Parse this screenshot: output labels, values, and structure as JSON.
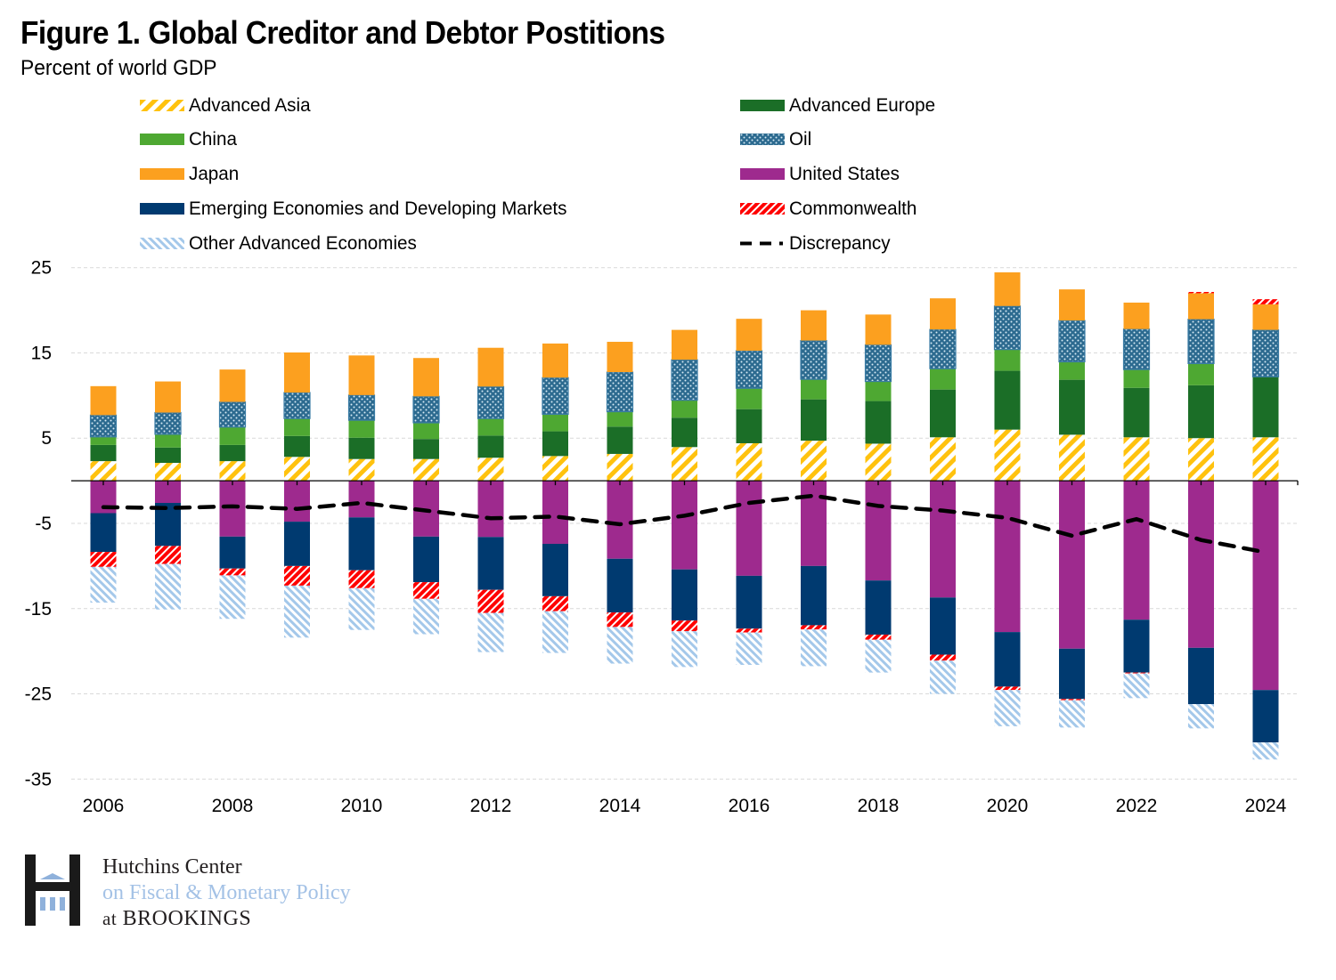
{
  "header": {
    "title": "Figure 1. Global Creditor and Debtor Postitions",
    "subtitle": "Percent of world GDP"
  },
  "legend": [
    {
      "key": "advanced_asia",
      "label": "Advanced Asia"
    },
    {
      "key": "advanced_europe",
      "label": "Advanced Europe"
    },
    {
      "key": "china",
      "label": "China"
    },
    {
      "key": "oil",
      "label": "Oil"
    },
    {
      "key": "japan",
      "label": "Japan"
    },
    {
      "key": "united_states",
      "label": "United States"
    },
    {
      "key": "emde",
      "label": "Emerging Economies and Developing Markets"
    },
    {
      "key": "commonwealth",
      "label": "Commonwealth"
    },
    {
      "key": "other_advanced",
      "label": "Other Advanced Economies"
    },
    {
      "key": "discrepancy",
      "label": "Discrepancy"
    }
  ],
  "colors": {
    "advanced_asia": "#ffc20e",
    "advanced_europe": "#1b6e27",
    "china": "#4ea832",
    "oil": "#2c6a8f",
    "japan": "#fca01f",
    "united_states": "#9e2a8e",
    "emde": "#003a70",
    "commonwealth": "#ff0000",
    "other_advanced": "#a4c8ea",
    "discrepancy": "#000000"
  },
  "logo": {
    "line1": "Hutchins Center",
    "line2": "on Fiscal & Monetary Policy",
    "line3_prefix": "at",
    "line3": "BROOKINGS"
  },
  "chart_data": {
    "type": "bar",
    "stacked": true,
    "title": "Figure 1. Global Creditor and Debtor Postitions",
    "subtitle": "Percent of world GDP",
    "xlabel": "",
    "ylabel": "Percent of world GDP",
    "ylim": [
      -35,
      25
    ],
    "yticks": [
      25,
      15,
      5,
      -5,
      -15,
      -25,
      -35
    ],
    "ytick_labels": [
      "25",
      "15",
      "5",
      "-5",
      "-15",
      "-25",
      "-35"
    ],
    "grid": true,
    "legend_position": "top",
    "categories": [
      "2006",
      "2007",
      "2008",
      "2009",
      "2010",
      "2011",
      "2012",
      "2013",
      "2014",
      "2015",
      "2016",
      "2017",
      "2018",
      "2019",
      "2020",
      "2021",
      "2022",
      "2023",
      "2024"
    ],
    "xtick_labels": [
      "2006",
      "2008",
      "2010",
      "2012",
      "2014",
      "2016",
      "2018",
      "2020",
      "2022",
      "2024"
    ],
    "series": [
      {
        "key": "advanced_asia",
        "name": "Advanced Asia",
        "type": "bar",
        "values": [
          2.3,
          2.1,
          2.3,
          2.8,
          2.55,
          2.55,
          2.7,
          2.9,
          3.15,
          3.95,
          4.4,
          4.7,
          4.35,
          5.1,
          6.0,
          5.4,
          5.1,
          5.0,
          5.1
        ]
      },
      {
        "key": "advanced_europe",
        "name": "Advanced Europe",
        "type": "bar",
        "values": [
          1.9,
          1.8,
          1.9,
          2.45,
          2.5,
          2.35,
          2.6,
          2.9,
          3.2,
          3.45,
          4.0,
          4.85,
          5.0,
          5.6,
          6.9,
          6.45,
          5.8,
          6.2,
          7.1
        ]
      },
      {
        "key": "china",
        "name": "China",
        "type": "bar",
        "values": [
          0.95,
          1.55,
          2.1,
          2.05,
          2.05,
          1.9,
          2.0,
          2.0,
          1.75,
          2.05,
          2.45,
          2.35,
          2.3,
          2.45,
          2.5,
          2.1,
          2.15,
          2.55,
          0.0
        ]
      },
      {
        "key": "oil",
        "name": "Oil",
        "type": "bar",
        "values": [
          2.55,
          2.55,
          2.95,
          3.05,
          2.95,
          3.1,
          3.75,
          4.3,
          4.65,
          4.75,
          4.4,
          4.55,
          4.3,
          4.6,
          5.1,
          4.85,
          4.75,
          5.2,
          5.5
        ]
      },
      {
        "key": "japan",
        "name": "Japan",
        "type": "bar",
        "values": [
          3.4,
          3.65,
          3.8,
          4.7,
          4.65,
          4.5,
          4.55,
          4.0,
          3.55,
          3.5,
          3.75,
          3.55,
          3.55,
          3.65,
          3.95,
          3.65,
          3.1,
          3.05,
          3.0
        ]
      },
      {
        "key": "united_states",
        "name": "United States",
        "type": "bar",
        "values": [
          -3.8,
          -2.6,
          -6.55,
          -4.8,
          -4.3,
          -6.55,
          -6.6,
          -7.4,
          -9.15,
          -10.4,
          -11.15,
          -10.0,
          -11.7,
          -13.7,
          -17.75,
          -19.7,
          -16.3,
          -19.6,
          -24.55
        ]
      },
      {
        "key": "emde",
        "name": "Emerging Economies and Developing Markets",
        "type": "bar",
        "values": [
          -4.55,
          -5.05,
          -3.75,
          -5.2,
          -6.2,
          -5.35,
          -6.2,
          -6.15,
          -6.3,
          -6.0,
          -6.2,
          -6.95,
          -6.35,
          -6.7,
          -6.4,
          -5.9,
          -6.2,
          -6.6,
          -6.15
        ]
      },
      {
        "key": "commonwealth",
        "name": "Commonwealth",
        "type": "bar",
        "values": [
          -1.75,
          -2.1,
          -0.8,
          -2.3,
          -2.1,
          -1.95,
          -2.7,
          -1.75,
          -1.7,
          -1.25,
          -0.45,
          -0.5,
          -0.6,
          -0.7,
          -0.4,
          -0.15,
          -0.1,
          0.15,
          0.6
        ]
      },
      {
        "key": "other_advanced",
        "name": "Other Advanced Economies",
        "type": "bar",
        "values": [
          -4.2,
          -5.35,
          -5.1,
          -6.1,
          -4.9,
          -4.15,
          -4.6,
          -4.9,
          -4.3,
          -4.2,
          -3.8,
          -4.3,
          -3.85,
          -3.9,
          -4.25,
          -3.2,
          -2.9,
          -2.85,
          -2.0
        ]
      },
      {
        "key": "discrepancy",
        "name": "Discrepancy",
        "type": "line",
        "style": "dashed",
        "values": [
          -3.1,
          -3.2,
          -3.0,
          -3.3,
          -2.6,
          -3.5,
          -4.4,
          -4.2,
          -5.1,
          -4.1,
          -2.6,
          -1.75,
          -2.95,
          -3.5,
          -4.35,
          -6.45,
          -4.5,
          -6.95,
          -8.4
        ]
      }
    ]
  }
}
